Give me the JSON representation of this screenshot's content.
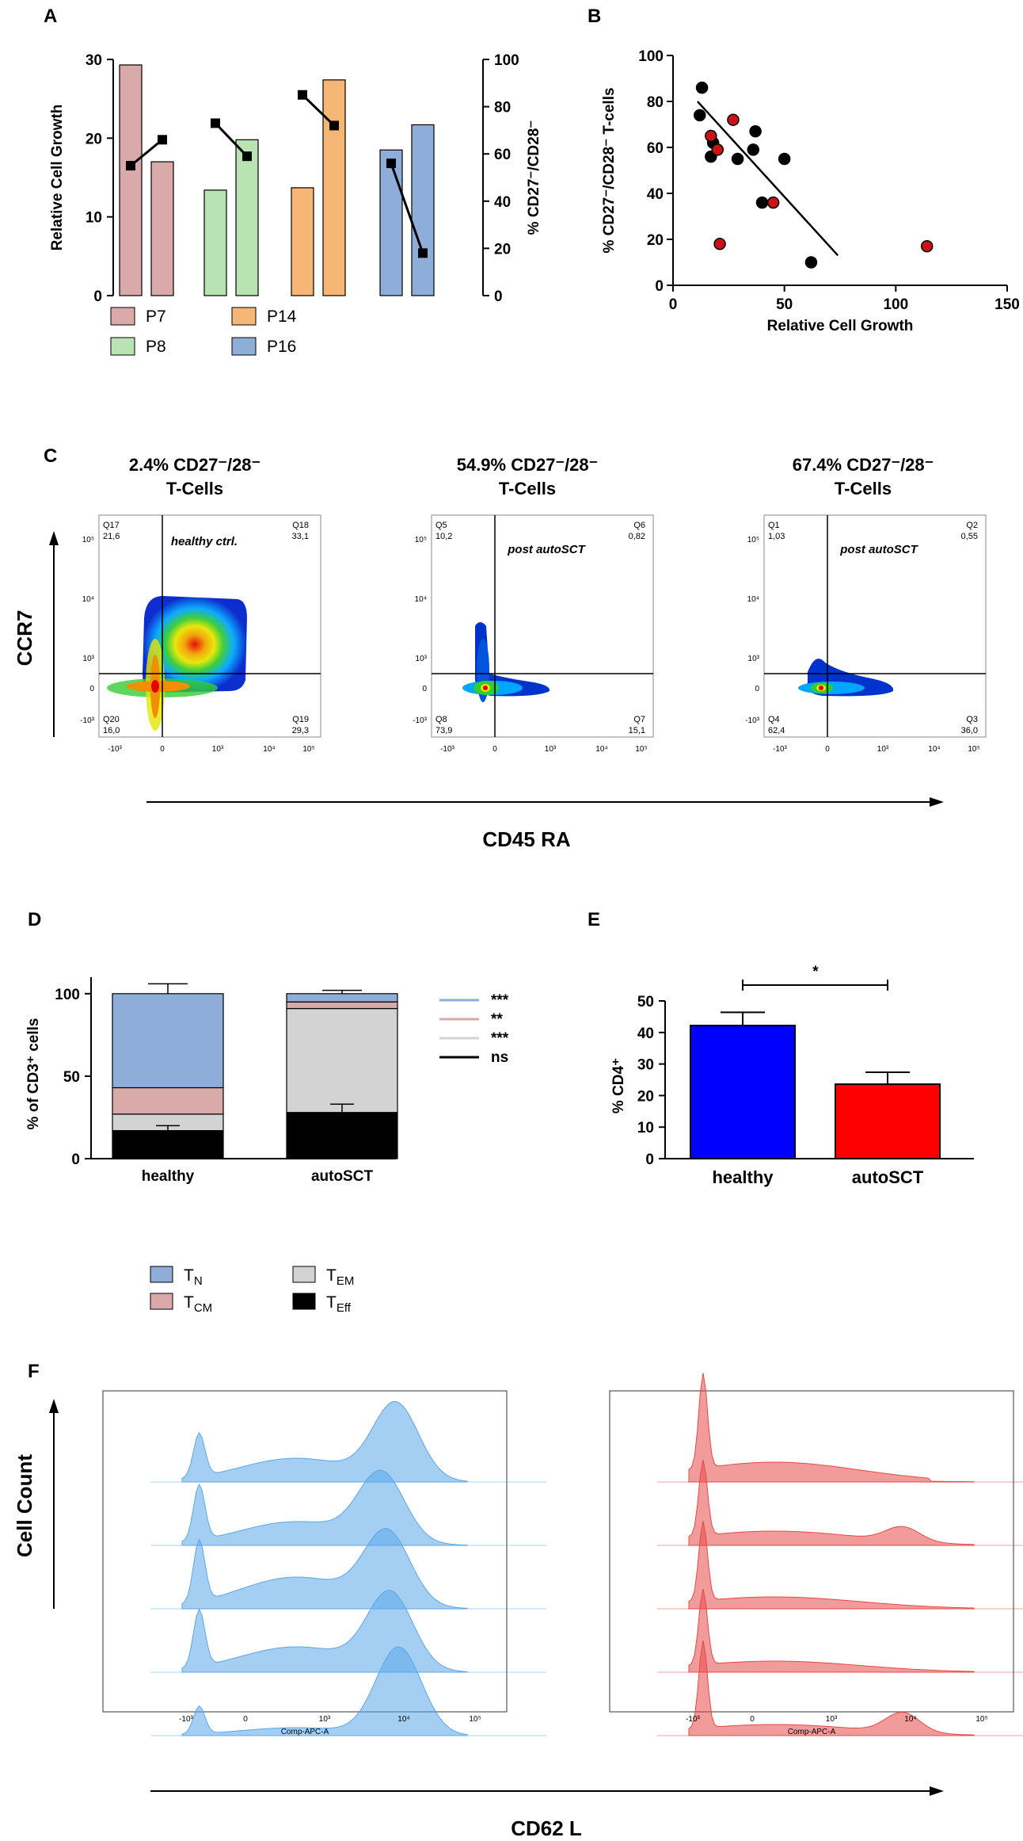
{
  "panels": {
    "a": "A",
    "b": "B",
    "c": "C",
    "d": "D",
    "e": "E",
    "f": "F"
  },
  "chart_data": [
    {
      "id": "A",
      "type": "bar",
      "categories": [
        "P7",
        "P8",
        "P14",
        "P16"
      ],
      "series": [
        {
          "name": "Relative Cell Growth (bar 1)",
          "values": [
            29.3,
            13.4,
            13.7,
            18.5
          ]
        },
        {
          "name": "Relative Cell Growth (bar 2)",
          "values": [
            17.0,
            19.8,
            27.4,
            21.7
          ]
        },
        {
          "name": "% CD27-/CD28- (line)",
          "values": [
            [
              55,
              66
            ],
            [
              73,
              59
            ],
            [
              85,
              72
            ],
            [
              56,
              18
            ]
          ]
        }
      ],
      "colors": {
        "P7": "#d9aaa9",
        "P8": "#b9e3b3",
        "P14": "#f5b676",
        "P16": "#8fadd9"
      },
      "ylabel": "Relative Cell Growth",
      "ylim": [
        0,
        30
      ],
      "yticks": [
        "0",
        "10",
        "20",
        "30"
      ],
      "y2label": "% CD27⁻/CD28⁻",
      "y2lim": [
        0,
        100
      ],
      "y2ticks": [
        "0",
        "20",
        "40",
        "60",
        "80",
        "100"
      ],
      "legend": [
        "P7",
        "P14",
        "P8",
        "P16"
      ]
    },
    {
      "id": "B",
      "type": "scatter",
      "series": [
        {
          "name": "black",
          "color": "#000000",
          "points": [
            [
              13,
              86
            ],
            [
              12,
              74
            ],
            [
              17,
              56
            ],
            [
              18,
              62
            ],
            [
              29,
              55
            ],
            [
              36,
              59
            ],
            [
              37,
              67
            ],
            [
              40,
              36
            ],
            [
              50,
              55
            ],
            [
              62,
              10
            ]
          ]
        },
        {
          "name": "red",
          "color": "#c81414",
          "points": [
            [
              17,
              65
            ],
            [
              20,
              59
            ],
            [
              27,
              72
            ],
            [
              21,
              18
            ],
            [
              45,
              36
            ],
            [
              114,
              17
            ]
          ]
        }
      ],
      "fit_line": [
        [
          11,
          80
        ],
        [
          74,
          13
        ]
      ],
      "xlabel": "Relative Cell Growth",
      "ylabel": "% CD27⁻/CD28⁻ T-cells",
      "xlim": [
        0,
        150
      ],
      "ylim": [
        0,
        100
      ],
      "xticks": [
        "0",
        "50",
        "100",
        "150"
      ],
      "yticks": [
        "0",
        "20",
        "40",
        "60",
        "80",
        "100"
      ]
    },
    {
      "id": "D",
      "type": "bar",
      "stacked": true,
      "categories": [
        "healthy",
        "autoSCT"
      ],
      "series": [
        {
          "name": "TEff",
          "color": "#000000",
          "values": [
            17,
            28
          ]
        },
        {
          "name": "TEM",
          "color": "#d3d3d3",
          "values": [
            10,
            63
          ]
        },
        {
          "name": "TCM",
          "color": "#d9aaa9",
          "values": [
            16,
            4
          ]
        },
        {
          "name": "TN",
          "color": "#8fadd9",
          "values": [
            57,
            5
          ]
        }
      ],
      "errors": [
        {
          "TEff": 3,
          "top": 6
        },
        {
          "TEff": 5,
          "top": 2
        }
      ],
      "ylabel": "% of CD3⁺ cells",
      "ylim": [
        0,
        110
      ],
      "yticks": [
        "0",
        "50",
        "100"
      ],
      "significance": [
        {
          "color": "#8fadd9",
          "label": "***"
        },
        {
          "color": "#d9aaa9",
          "label": "**"
        },
        {
          "color": "#d3d3d3",
          "label": "***"
        },
        {
          "color": "#000000",
          "label": "ns"
        }
      ]
    },
    {
      "id": "E",
      "type": "bar",
      "categories": [
        "healthy",
        "autoSCT"
      ],
      "values": [
        42.2,
        23.6
      ],
      "errors": [
        4.2,
        3.8
      ],
      "colors": [
        "#0000ff",
        "#ff0000"
      ],
      "ylabel": "% CD4⁺",
      "ylim": [
        0,
        50
      ],
      "yticks": [
        "0",
        "10",
        "20",
        "30",
        "40",
        "50"
      ],
      "significance": "*"
    }
  ],
  "legendD": {
    "tn": {
      "main": "T",
      "sub": "N"
    },
    "tem": {
      "main": "T",
      "sub": "EM"
    },
    "tcm": {
      "main": "T",
      "sub": "CM"
    },
    "teff": {
      "main": "T",
      "sub": "Eff"
    }
  },
  "panelC": {
    "plots": [
      {
        "title1": "2.4% CD27⁻/28⁻",
        "title2": "T-Cells",
        "label": "healthy ctrl.",
        "q_tl": [
          "Q17",
          "21,6"
        ],
        "q_tr": [
          "Q18",
          "33,1"
        ],
        "q_bl": [
          "Q20",
          "16,0"
        ],
        "q_br": [
          "Q19",
          "29,3"
        ]
      },
      {
        "title1": "54.9% CD27⁻/28⁻",
        "title2": "T-Cells",
        "label": "post autoSCT",
        "q_tl": [
          "Q5",
          "10,2"
        ],
        "q_tr": [
          "Q6",
          "0,82"
        ],
        "q_bl": [
          "Q8",
          "73,9"
        ],
        "q_br": [
          "Q7",
          "15,1"
        ]
      },
      {
        "title1": "67.4% CD27⁻/28⁻",
        "title2": "T-Cells",
        "label": "post autoSCT",
        "q_tl": [
          "Q1",
          "1,03"
        ],
        "q_tr": [
          "Q2",
          "0,55"
        ],
        "q_bl": [
          "Q4",
          "62,4"
        ],
        "q_br": [
          "Q3",
          "36,0"
        ]
      }
    ],
    "yaxis": "CCR7",
    "xaxis": "CD45 RA",
    "yticks": [
      "10⁵",
      "10⁴",
      "10³",
      "0",
      "-10³"
    ],
    "xticks": [
      "-10³",
      "0",
      "10³",
      "10⁴",
      "10⁵"
    ]
  },
  "panelF": {
    "yaxis": "Cell Count",
    "xaxis": "CD62 L",
    "plot_label": "Comp-APC-A",
    "xticks": [
      "-10³",
      "0",
      "10³",
      "10⁴",
      "10⁵"
    ],
    "colors": {
      "healthy": "#5aa7e9",
      "autoSCT": "#e84848"
    }
  }
}
